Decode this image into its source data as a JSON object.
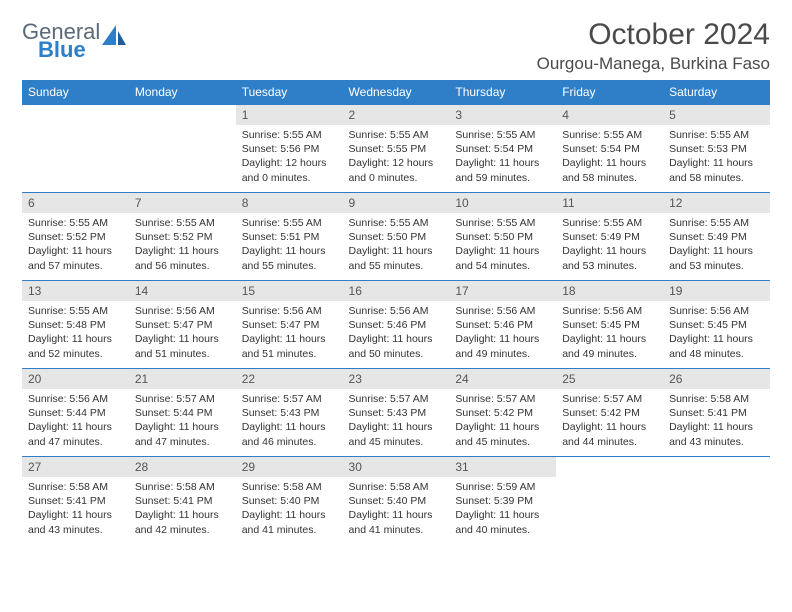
{
  "header": {
    "logo_line1": "General",
    "logo_line2": "Blue",
    "month_title": "October 2024",
    "location": "Ourgou-Manega, Burkina Faso"
  },
  "calendar": {
    "day_headers": [
      "Sunday",
      "Monday",
      "Tuesday",
      "Wednesday",
      "Thursday",
      "Friday",
      "Saturday"
    ],
    "header_bg": "#2f7fc8",
    "header_fg": "#ffffff",
    "daynum_bg": "#e6e6e6",
    "row_border": "#2f7fc8",
    "weeks": [
      [
        null,
        null,
        {
          "n": "1",
          "sr": "5:55 AM",
          "ss": "5:56 PM",
          "dl": "12 hours and 0 minutes."
        },
        {
          "n": "2",
          "sr": "5:55 AM",
          "ss": "5:55 PM",
          "dl": "12 hours and 0 minutes."
        },
        {
          "n": "3",
          "sr": "5:55 AM",
          "ss": "5:54 PM",
          "dl": "11 hours and 59 minutes."
        },
        {
          "n": "4",
          "sr": "5:55 AM",
          "ss": "5:54 PM",
          "dl": "11 hours and 58 minutes."
        },
        {
          "n": "5",
          "sr": "5:55 AM",
          "ss": "5:53 PM",
          "dl": "11 hours and 58 minutes."
        }
      ],
      [
        {
          "n": "6",
          "sr": "5:55 AM",
          "ss": "5:52 PM",
          "dl": "11 hours and 57 minutes."
        },
        {
          "n": "7",
          "sr": "5:55 AM",
          "ss": "5:52 PM",
          "dl": "11 hours and 56 minutes."
        },
        {
          "n": "8",
          "sr": "5:55 AM",
          "ss": "5:51 PM",
          "dl": "11 hours and 55 minutes."
        },
        {
          "n": "9",
          "sr": "5:55 AM",
          "ss": "5:50 PM",
          "dl": "11 hours and 55 minutes."
        },
        {
          "n": "10",
          "sr": "5:55 AM",
          "ss": "5:50 PM",
          "dl": "11 hours and 54 minutes."
        },
        {
          "n": "11",
          "sr": "5:55 AM",
          "ss": "5:49 PM",
          "dl": "11 hours and 53 minutes."
        },
        {
          "n": "12",
          "sr": "5:55 AM",
          "ss": "5:49 PM",
          "dl": "11 hours and 53 minutes."
        }
      ],
      [
        {
          "n": "13",
          "sr": "5:55 AM",
          "ss": "5:48 PM",
          "dl": "11 hours and 52 minutes."
        },
        {
          "n": "14",
          "sr": "5:56 AM",
          "ss": "5:47 PM",
          "dl": "11 hours and 51 minutes."
        },
        {
          "n": "15",
          "sr": "5:56 AM",
          "ss": "5:47 PM",
          "dl": "11 hours and 51 minutes."
        },
        {
          "n": "16",
          "sr": "5:56 AM",
          "ss": "5:46 PM",
          "dl": "11 hours and 50 minutes."
        },
        {
          "n": "17",
          "sr": "5:56 AM",
          "ss": "5:46 PM",
          "dl": "11 hours and 49 minutes."
        },
        {
          "n": "18",
          "sr": "5:56 AM",
          "ss": "5:45 PM",
          "dl": "11 hours and 49 minutes."
        },
        {
          "n": "19",
          "sr": "5:56 AM",
          "ss": "5:45 PM",
          "dl": "11 hours and 48 minutes."
        }
      ],
      [
        {
          "n": "20",
          "sr": "5:56 AM",
          "ss": "5:44 PM",
          "dl": "11 hours and 47 minutes."
        },
        {
          "n": "21",
          "sr": "5:57 AM",
          "ss": "5:44 PM",
          "dl": "11 hours and 47 minutes."
        },
        {
          "n": "22",
          "sr": "5:57 AM",
          "ss": "5:43 PM",
          "dl": "11 hours and 46 minutes."
        },
        {
          "n": "23",
          "sr": "5:57 AM",
          "ss": "5:43 PM",
          "dl": "11 hours and 45 minutes."
        },
        {
          "n": "24",
          "sr": "5:57 AM",
          "ss": "5:42 PM",
          "dl": "11 hours and 45 minutes."
        },
        {
          "n": "25",
          "sr": "5:57 AM",
          "ss": "5:42 PM",
          "dl": "11 hours and 44 minutes."
        },
        {
          "n": "26",
          "sr": "5:58 AM",
          "ss": "5:41 PM",
          "dl": "11 hours and 43 minutes."
        }
      ],
      [
        {
          "n": "27",
          "sr": "5:58 AM",
          "ss": "5:41 PM",
          "dl": "11 hours and 43 minutes."
        },
        {
          "n": "28",
          "sr": "5:58 AM",
          "ss": "5:41 PM",
          "dl": "11 hours and 42 minutes."
        },
        {
          "n": "29",
          "sr": "5:58 AM",
          "ss": "5:40 PM",
          "dl": "11 hours and 41 minutes."
        },
        {
          "n": "30",
          "sr": "5:58 AM",
          "ss": "5:40 PM",
          "dl": "11 hours and 41 minutes."
        },
        {
          "n": "31",
          "sr": "5:59 AM",
          "ss": "5:39 PM",
          "dl": "11 hours and 40 minutes."
        },
        null,
        null
      ]
    ]
  },
  "labels": {
    "sunrise": "Sunrise:",
    "sunset": "Sunset:",
    "daylight": "Daylight:"
  }
}
